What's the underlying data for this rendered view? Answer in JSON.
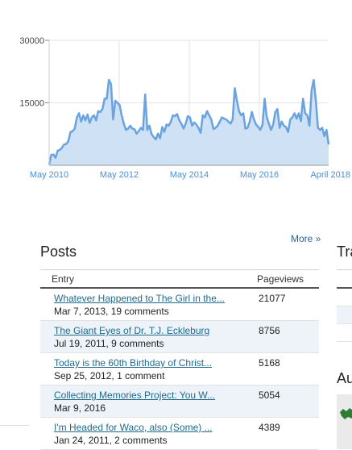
{
  "chart_data": {
    "type": "area",
    "x_tick_labels": [
      "May 2010",
      "May 2012",
      "May 2014",
      "May 2016",
      "April 2018"
    ],
    "y_tick_labels": [
      "30000",
      "15000"
    ],
    "ylim": [
      0,
      30000
    ],
    "grid": true,
    "color": "#6aa3e0",
    "fill": "#cfe1f5",
    "values": [
      200,
      2500,
      2600,
      1800,
      3500,
      3700,
      4200,
      5000,
      5100,
      5800,
      8000,
      8200,
      8800,
      11500,
      12500,
      10500,
      12000,
      10800,
      12200,
      10200,
      11500,
      12000,
      10800,
      13000,
      12800,
      13500,
      16000,
      16000,
      20500,
      19500,
      11000,
      15500,
      15000,
      14500,
      12000,
      10000,
      8500,
      8800,
      9500,
      8800,
      8700,
      7600,
      8200,
      9000,
      8500,
      17000,
      8500,
      9500,
      7500,
      6800,
      6200,
      7600,
      6500,
      9200,
      8000,
      9800,
      9500,
      10400,
      12000,
      11800,
      12300,
      10800,
      10000,
      8800,
      10000,
      11800,
      11500,
      9500,
      10300,
      9800,
      9000,
      7800,
      12000,
      11500,
      13000,
      12000,
      11000,
      8700,
      9000,
      9500,
      10500,
      11500,
      11200,
      11000,
      10500,
      10000,
      11000,
      18500,
      15500,
      13000,
      12000,
      12500,
      8800,
      9000,
      10500,
      12800,
      11000,
      9800,
      9200,
      8500,
      9800,
      16000,
      11500,
      10000,
      8500,
      9800,
      12800,
      13500,
      9000,
      10500,
      9500,
      9200,
      8000,
      11000,
      11500,
      12500,
      11200,
      12500,
      10600,
      16000,
      12500,
      12000,
      9500,
      18000,
      20500,
      15500,
      9000,
      8500,
      9000,
      7000,
      8500,
      5000
    ]
  },
  "more_label": "More »",
  "posts": {
    "title": "Posts",
    "col_entry": "Entry",
    "col_views": "Pageviews",
    "rows": [
      {
        "title": "Whatever Happened to The Girl in the...",
        "meta": "Mar 7, 2013, 19 comments",
        "views": "21077"
      },
      {
        "title": "The Giant Eyes of Dr. T.J. Eckleburg",
        "meta": "Jul 19, 2011, 9 comments",
        "views": "8756"
      },
      {
        "title": "Today is the 60th Birthday of Christ...",
        "meta": "Sep 25, 2012, 1 comment",
        "views": "5168"
      },
      {
        "title": "Collecting Memories Project: You W...",
        "meta": "Mar 9, 2016",
        "views": "5054"
      },
      {
        "title": "I'm Headed for Waco, also (Some) ...",
        "meta": "Jan 24, 2011, 2 comments",
        "views": "4389"
      }
    ]
  },
  "right_col": {
    "title_partial": "Tra",
    "title2_partial": "Au"
  }
}
